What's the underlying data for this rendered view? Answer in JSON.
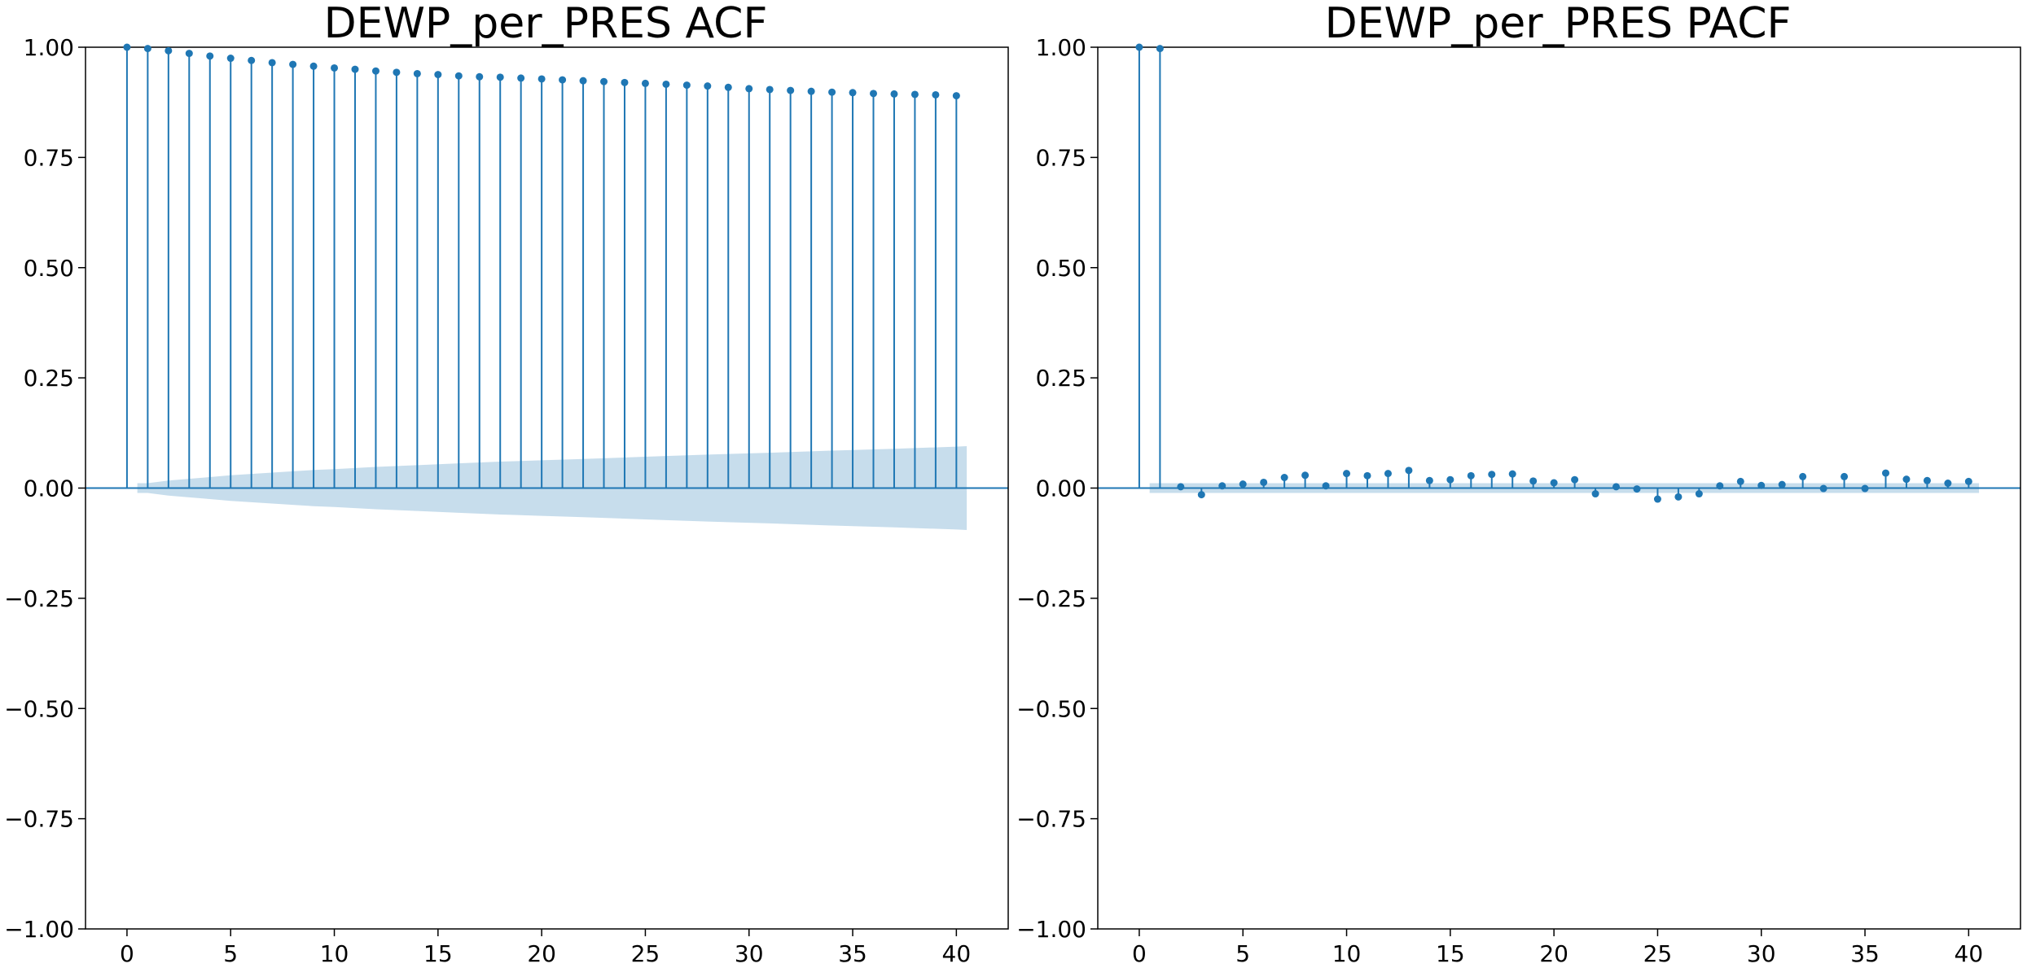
{
  "chart_data": [
    {
      "type": "stem",
      "title": "DEWP_per_PRES ACF",
      "xlabel": "",
      "ylabel": "",
      "xlim": [
        -2,
        42.5
      ],
      "ylim": [
        -1.0,
        1.0
      ],
      "x_ticks": [
        "0",
        "5",
        "10",
        "15",
        "20",
        "25",
        "30",
        "35",
        "40"
      ],
      "y_ticks": [
        "1.00",
        "0.75",
        "0.50",
        "0.25",
        "0.00",
        "−0.25",
        "−0.50",
        "−0.75",
        "−1.00"
      ],
      "grid": false,
      "colors": {
        "series": "#1f77b4",
        "confidence_band": "#1f77b4"
      },
      "lags": [
        0,
        1,
        2,
        3,
        4,
        5,
        6,
        7,
        8,
        9,
        10,
        11,
        12,
        13,
        14,
        15,
        16,
        17,
        18,
        19,
        20,
        21,
        22,
        23,
        24,
        25,
        26,
        27,
        28,
        29,
        30,
        31,
        32,
        33,
        34,
        35,
        36,
        37,
        38,
        39,
        40
      ],
      "values": [
        1.0,
        0.997,
        0.992,
        0.986,
        0.98,
        0.975,
        0.97,
        0.965,
        0.961,
        0.957,
        0.953,
        0.95,
        0.946,
        0.943,
        0.94,
        0.938,
        0.935,
        0.933,
        0.932,
        0.93,
        0.928,
        0.926,
        0.924,
        0.922,
        0.92,
        0.918,
        0.916,
        0.914,
        0.912,
        0.909,
        0.906,
        0.904,
        0.902,
        0.9,
        0.898,
        0.897,
        0.895,
        0.894,
        0.893,
        0.892,
        0.89
      ],
      "confidence_interval": {
        "lags": [
          0.5,
          1,
          2,
          3,
          4,
          5,
          6,
          7,
          8,
          9,
          10,
          12,
          14,
          16,
          18,
          20,
          22,
          25,
          28,
          31,
          34,
          37,
          40,
          40.5
        ],
        "half_width": [
          0.011,
          0.011,
          0.017,
          0.021,
          0.025,
          0.029,
          0.032,
          0.035,
          0.038,
          0.041,
          0.043,
          0.048,
          0.052,
          0.056,
          0.06,
          0.063,
          0.066,
          0.071,
          0.076,
          0.08,
          0.085,
          0.089,
          0.094,
          0.095
        ]
      }
    },
    {
      "type": "stem",
      "title": "DEWP_per_PRES PACF",
      "xlabel": "",
      "ylabel": "",
      "xlim": [
        -2,
        42.5
      ],
      "ylim": [
        -1.0,
        1.0
      ],
      "x_ticks": [
        "0",
        "5",
        "10",
        "15",
        "20",
        "25",
        "30",
        "35",
        "40"
      ],
      "y_ticks": [
        "1.00",
        "0.75",
        "0.50",
        "0.25",
        "0.00",
        "−0.25",
        "−0.50",
        "−0.75",
        "−1.00"
      ],
      "grid": false,
      "colors": {
        "series": "#1f77b4",
        "confidence_band": "#1f77b4"
      },
      "lags": [
        0,
        1,
        2,
        3,
        4,
        5,
        6,
        7,
        8,
        9,
        10,
        11,
        12,
        13,
        14,
        15,
        16,
        17,
        18,
        19,
        20,
        21,
        22,
        23,
        24,
        25,
        26,
        27,
        28,
        29,
        30,
        31,
        32,
        33,
        34,
        35,
        36,
        37,
        38,
        39,
        40
      ],
      "values": [
        1.0,
        0.997,
        0.003,
        -0.015,
        0.005,
        0.009,
        0.013,
        0.024,
        0.029,
        0.005,
        0.033,
        0.028,
        0.033,
        0.04,
        0.017,
        0.019,
        0.028,
        0.031,
        0.032,
        0.016,
        0.012,
        0.019,
        -0.013,
        0.003,
        -0.002,
        -0.025,
        -0.02,
        -0.013,
        0.005,
        0.015,
        0.006,
        0.008,
        0.026,
        -0.001,
        0.026,
        -0.001,
        0.034,
        0.02,
        0.017,
        0.011,
        0.015
      ],
      "confidence_interval": {
        "lags": [
          0.5,
          40.5
        ],
        "half_width": [
          0.011,
          0.011
        ]
      }
    }
  ]
}
